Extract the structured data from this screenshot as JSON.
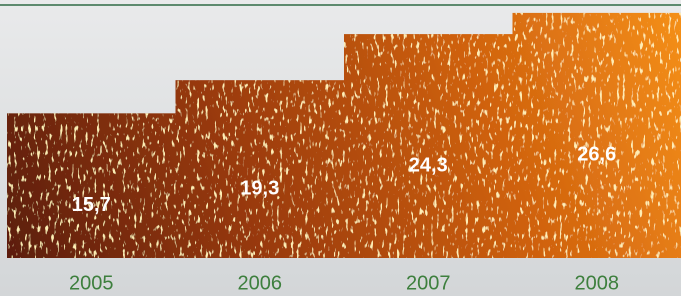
{
  "chart_data": {
    "type": "bar",
    "categories": [
      "2005",
      "2006",
      "2007",
      "2008"
    ],
    "values": [
      15.7,
      19.3,
      24.3,
      26.6
    ],
    "value_labels": [
      "15,7",
      "19,3",
      "24,3",
      "26,6"
    ],
    "ylim": [
      0,
      28
    ]
  }
}
